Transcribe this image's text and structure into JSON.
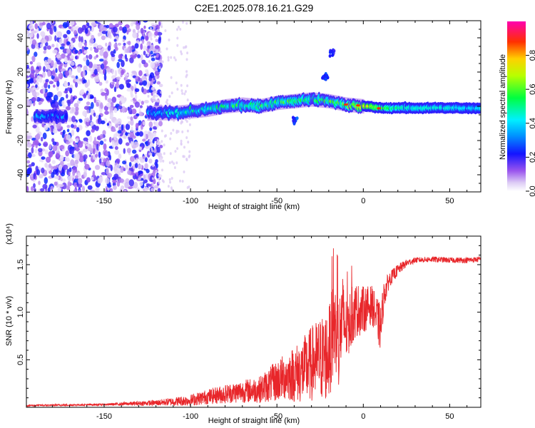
{
  "title": "C2E1.2025.078.16.21.G29",
  "chart_data": [
    {
      "type": "heatmap",
      "xlabel": "Height of straight line (km)",
      "ylabel": "Frequency (Hz)",
      "xlim": [
        -195,
        68
      ],
      "ylim": [
        -50,
        50
      ],
      "xticks": [
        -150,
        -100,
        -50,
        0,
        50
      ],
      "yticks": [
        -40,
        -20,
        0,
        20,
        40
      ],
      "colorbar": {
        "label": "Normalized spectral amplitude",
        "range": [
          0.0,
          1.0
        ],
        "ticks": [
          0.0,
          0.2,
          0.4,
          0.6,
          0.8
        ],
        "tick_labels": [
          "0.0",
          "0.2",
          "0.4",
          "0.6",
          "0.8"
        ],
        "colormap": "rainbow (white-lavender-purple-blue-cyan-green-yellow-orange-red-magenta)"
      },
      "noise_region_x": [
        -195,
        -125
      ],
      "signal_track": [
        {
          "x": -190,
          "freq": -6,
          "amp": 0.35
        },
        {
          "x": -175,
          "freq": -6,
          "amp": 0.3
        },
        {
          "x": -120,
          "freq": -4,
          "amp": 0.35
        },
        {
          "x": -110,
          "freq": -4,
          "amp": 0.4
        },
        {
          "x": -100,
          "freq": -3,
          "amp": 0.45
        },
        {
          "x": -90,
          "freq": -2,
          "amp": 0.45
        },
        {
          "x": -80,
          "freq": 0,
          "amp": 0.5
        },
        {
          "x": -70,
          "freq": 1,
          "amp": 0.5
        },
        {
          "x": -60,
          "freq": 0,
          "amp": 0.55
        },
        {
          "x": -50,
          "freq": 2,
          "amp": 0.5
        },
        {
          "x": -40,
          "freq": 3,
          "amp": 0.55
        },
        {
          "x": -30,
          "freq": 4,
          "amp": 0.5
        },
        {
          "x": -20,
          "freq": 3,
          "amp": 0.55
        },
        {
          "x": -10,
          "freq": 1,
          "amp": 0.6
        },
        {
          "x": 0,
          "freq": 0,
          "amp": 0.75
        },
        {
          "x": 10,
          "freq": -1,
          "amp": 0.6
        },
        {
          "x": 20,
          "freq": -1,
          "amp": 0.5
        },
        {
          "x": 30,
          "freq": -1,
          "amp": 0.45
        },
        {
          "x": 40,
          "freq": -1,
          "amp": 0.45
        },
        {
          "x": 50,
          "freq": -1,
          "amp": 0.45
        },
        {
          "x": 60,
          "freq": -1,
          "amp": 0.4
        },
        {
          "x": 68,
          "freq": -1,
          "amp": 0.4
        }
      ],
      "secondary_features": [
        {
          "x": -22,
          "freq": 17,
          "amp": 0.2
        },
        {
          "x": -18,
          "freq": 31,
          "amp": 0.15
        },
        {
          "x": -40,
          "freq": -8,
          "amp": 0.2
        }
      ]
    },
    {
      "type": "line",
      "xlabel": "Height of straight line (km)",
      "ylabel": "SNR (10 * v/v)",
      "y_multiplier": "(x10⁴)",
      "xlim": [
        -195,
        68
      ],
      "ylim": [
        0,
        1.8
      ],
      "xticks": [
        -150,
        -100,
        -50,
        0,
        50
      ],
      "yticks": [
        0.5,
        1.0,
        1.5
      ],
      "ytick_labels": [
        "0.5",
        "1.0",
        "1.5"
      ],
      "color": "#e8262a",
      "series": [
        {
          "x": [
            -195,
            -150,
            -120,
            -100,
            -90,
            -80,
            -70,
            -60,
            -50,
            -45,
            -40,
            -35,
            -30,
            -25,
            -20,
            -17,
            -14,
            -12,
            -10,
            -5,
            0,
            5,
            10,
            12,
            15,
            20,
            25,
            30,
            40,
            50,
            60,
            68
          ],
          "y": [
            0.02,
            0.03,
            0.05,
            0.08,
            0.12,
            0.15,
            0.18,
            0.2,
            0.3,
            0.35,
            0.38,
            0.42,
            0.5,
            0.55,
            0.6,
            0.9,
            0.75,
            1.0,
            0.85,
            1.05,
            1.05,
            1.1,
            0.85,
            1.2,
            1.35,
            1.45,
            1.52,
            1.55,
            1.56,
            1.55,
            1.55,
            1.56
          ],
          "spread": [
            0.01,
            0.01,
            0.03,
            0.06,
            0.08,
            0.1,
            0.12,
            0.14,
            0.22,
            0.25,
            0.3,
            0.35,
            0.4,
            0.45,
            0.5,
            0.5,
            0.5,
            0.45,
            0.35,
            0.3,
            0.25,
            0.2,
            0.25,
            0.15,
            0.08,
            0.06,
            0.04,
            0.03,
            0.03,
            0.03,
            0.03,
            0.03
          ]
        }
      ]
    }
  ]
}
